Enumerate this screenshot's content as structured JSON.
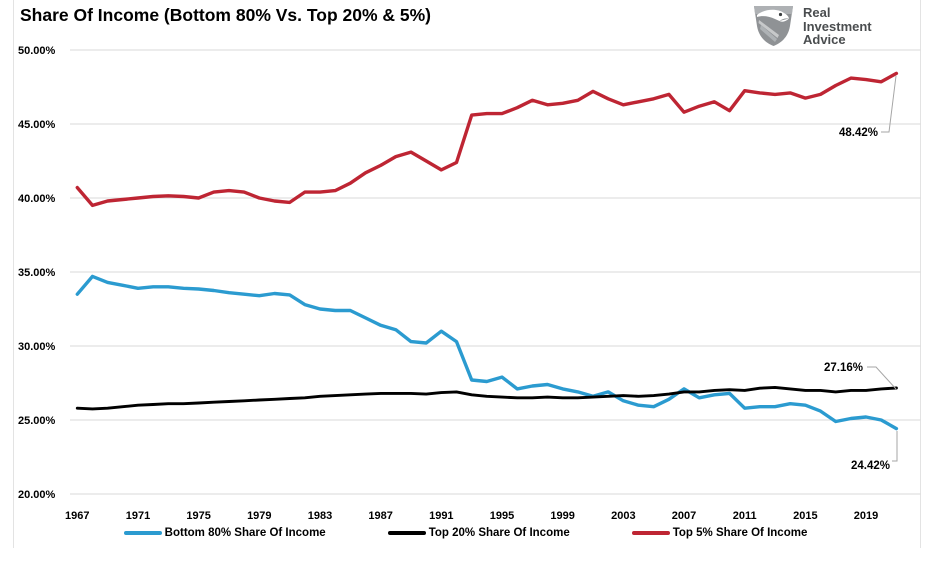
{
  "header": {
    "title": "Share Of Income (Bottom 80% Vs. Top 20% & 5%)",
    "logo": {
      "icon": "eagle-icon",
      "line1": "Real",
      "line2": "Investment",
      "line3": "Advice"
    }
  },
  "chart_data": {
    "type": "line",
    "title": "Share Of Income (Bottom 80% Vs. Top 20% & 5%)",
    "xlabel": "",
    "ylabel": "",
    "xlim": [
      1967,
      2022.5
    ],
    "ylim": [
      20,
      50
    ],
    "grid": "horizontal",
    "gridline_color": "#d9d9d9",
    "border_color": "#e3e3e3",
    "leader_color": "#a6a6a6",
    "legend_position": "bottom",
    "x": [
      1967,
      1968,
      1969,
      1970,
      1971,
      1972,
      1973,
      1974,
      1975,
      1976,
      1977,
      1978,
      1979,
      1980,
      1981,
      1982,
      1983,
      1984,
      1985,
      1986,
      1987,
      1988,
      1989,
      1990,
      1991,
      1992,
      1993,
      1994,
      1995,
      1996,
      1997,
      1998,
      1999,
      2000,
      2001,
      2002,
      2003,
      2004,
      2005,
      2006,
      2007,
      2008,
      2009,
      2010,
      2011,
      2012,
      2013,
      2014,
      2015,
      2016,
      2017,
      2018,
      2019,
      2020,
      2021
    ],
    "x_ticks": [
      1967,
      1971,
      1975,
      1979,
      1983,
      1987,
      1991,
      1995,
      1999,
      2003,
      2007,
      2011,
      2015,
      2019
    ],
    "y_ticks": [
      {
        "value": 50,
        "label": "50.00%"
      },
      {
        "value": 45,
        "label": "45.00%"
      },
      {
        "value": 40,
        "label": "40.00%"
      },
      {
        "value": 35,
        "label": "35.00%"
      },
      {
        "value": 30,
        "label": "30.00%"
      },
      {
        "value": 25,
        "label": "25.00%"
      },
      {
        "value": 20,
        "label": "20.00%"
      }
    ],
    "series": [
      {
        "name": "Bottom 80% Share Of Income",
        "color": "#2b9bd0",
        "values": [
          33.5,
          34.7,
          34.3,
          34.1,
          33.9,
          34.0,
          34.0,
          33.9,
          33.85,
          33.75,
          33.6,
          33.5,
          33.4,
          33.55,
          33.45,
          32.8,
          32.5,
          32.4,
          32.4,
          31.9,
          31.4,
          31.1,
          30.3,
          30.2,
          31.0,
          30.3,
          27.7,
          27.6,
          27.9,
          27.1,
          27.3,
          27.4,
          27.1,
          26.9,
          26.6,
          26.9,
          26.3,
          26.0,
          25.9,
          26.4,
          27.1,
          26.5,
          26.7,
          26.8,
          25.8,
          25.9,
          25.9,
          26.1,
          26.0,
          25.6,
          24.9,
          25.1,
          25.2,
          25.0,
          24.42
        ]
      },
      {
        "name": "Top 20% Share Of Income",
        "color": "#000000",
        "values": [
          25.8,
          25.75,
          25.8,
          25.9,
          26.0,
          26.05,
          26.1,
          26.1,
          26.15,
          26.2,
          26.25,
          26.3,
          26.35,
          26.4,
          26.45,
          26.5,
          26.6,
          26.65,
          26.7,
          26.75,
          26.8,
          26.8,
          26.8,
          26.75,
          26.85,
          26.9,
          26.7,
          26.6,
          26.55,
          26.5,
          26.5,
          26.55,
          26.5,
          26.5,
          26.55,
          26.6,
          26.65,
          26.6,
          26.65,
          26.75,
          26.9,
          26.9,
          27.0,
          27.05,
          27.0,
          27.15,
          27.2,
          27.1,
          27.0,
          27.0,
          26.9,
          27.0,
          27.0,
          27.1,
          27.16
        ]
      },
      {
        "name": "Top 5% Share Of Income",
        "color": "#be2533",
        "values": [
          40.7,
          39.5,
          39.8,
          39.9,
          40.0,
          40.1,
          40.15,
          40.1,
          40.0,
          40.4,
          40.5,
          40.4,
          40.0,
          39.8,
          39.7,
          40.4,
          40.4,
          40.5,
          41.0,
          41.7,
          42.2,
          42.8,
          43.1,
          42.5,
          41.9,
          42.4,
          45.6,
          45.7,
          45.7,
          46.1,
          46.6,
          46.3,
          46.4,
          46.6,
          47.2,
          46.7,
          46.3,
          46.5,
          46.7,
          47.0,
          45.8,
          46.2,
          46.5,
          45.9,
          47.25,
          47.1,
          47.0,
          47.1,
          46.75,
          47.0,
          47.6,
          48.1,
          48.0,
          47.85,
          48.42
        ]
      }
    ],
    "annotations": [
      {
        "text": "24.42%",
        "series_index": 0,
        "x": 2021,
        "value": 24.42
      },
      {
        "text": "27.16%",
        "series_index": 1,
        "x": 2021,
        "value": 27.16
      },
      {
        "text": "48.42%",
        "series_index": 2,
        "x": 2021,
        "value": 48.42
      }
    ]
  }
}
